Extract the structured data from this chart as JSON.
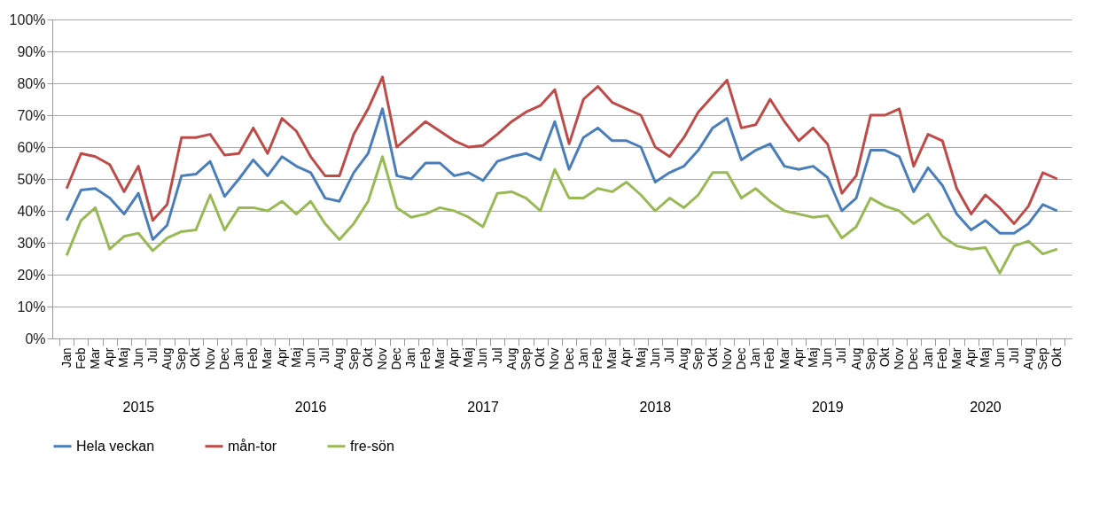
{
  "chart_data": {
    "type": "line",
    "categories": [
      "Jan",
      "Feb",
      "Mar",
      "Apr",
      "Maj",
      "Jun",
      "Jul",
      "Aug",
      "Sep",
      "Okt",
      "Nov",
      "Dec",
      "Jan",
      "Feb",
      "Mar",
      "Apr",
      "Maj",
      "Jun",
      "Jul",
      "Aug",
      "Sep",
      "Okt",
      "Nov",
      "Dec",
      "Jan",
      "Feb",
      "Mar",
      "Apr",
      "Maj",
      "Jun",
      "Jul",
      "Aug",
      "Sep",
      "Okt",
      "Nov",
      "Dec",
      "Jan",
      "Feb",
      "Mar",
      "Apr",
      "Maj",
      "Jun",
      "Jul",
      "Aug",
      "Sep",
      "Okt",
      "Nov",
      "Dec",
      "Jan",
      "Feb",
      "Mar",
      "Apr",
      "Maj",
      "Jun",
      "Jul",
      "Aug",
      "Sep",
      "Okt",
      "Nov",
      "Dec",
      "Jan",
      "Feb",
      "Mar",
      "Apr",
      "Maj",
      "Jun",
      "Jul",
      "Aug",
      "Sep",
      "Okt"
    ],
    "series": [
      {
        "name": "Hela veckan",
        "color": "#4a7ebb",
        "values": [
          37,
          46.5,
          47,
          44,
          39,
          45.5,
          31,
          35.5,
          51,
          51.5,
          55.5,
          44.5,
          50,
          56,
          51,
          57,
          54,
          52,
          44,
          43,
          52,
          58,
          72,
          51,
          50,
          55,
          55,
          51,
          52,
          49.5,
          55.5,
          57,
          58,
          56,
          68,
          53,
          63,
          66,
          62,
          62,
          60,
          49,
          52,
          54,
          59,
          66,
          69,
          56,
          59,
          61,
          54,
          53,
          54,
          50.5,
          40,
          44,
          59,
          59,
          57,
          46,
          53.5,
          48,
          39,
          34,
          37,
          33,
          33,
          36,
          42,
          40
        ]
      },
      {
        "name": "mån-tor",
        "color": "#be4b48",
        "values": [
          47,
          58,
          57,
          54.5,
          46,
          54,
          37,
          42,
          63,
          63,
          64,
          57.5,
          58,
          66,
          58,
          69,
          65,
          57,
          51,
          51,
          64,
          72,
          82,
          60,
          64,
          68,
          65,
          62,
          60,
          60.5,
          64,
          68,
          71,
          73,
          78,
          61,
          75,
          79,
          74,
          72,
          70,
          60,
          57,
          63,
          71,
          76,
          81,
          66,
          67,
          75,
          68,
          62,
          66,
          61,
          45.5,
          51,
          70,
          70,
          72,
          54,
          64,
          62,
          47,
          39,
          45,
          41,
          36,
          41.5,
          52,
          50
        ]
      },
      {
        "name": "fre-sön",
        "color": "#98b954",
        "values": [
          26,
          37,
          41,
          28,
          32,
          33,
          27.5,
          31.5,
          33.5,
          34,
          45,
          34,
          41,
          41,
          40,
          43,
          39,
          43,
          36,
          31,
          36,
          43,
          57,
          41,
          38,
          39,
          41,
          40,
          38,
          35,
          45.5,
          46,
          44,
          40,
          53,
          44,
          44,
          47,
          46,
          49,
          45,
          40,
          44,
          41,
          45,
          52,
          52,
          44,
          47,
          43,
          40,
          39,
          38,
          38.5,
          31.5,
          35,
          44,
          41.5,
          40,
          36,
          39,
          32,
          29,
          28,
          28.5,
          20.5,
          29,
          30.5,
          26.5,
          28
        ]
      }
    ],
    "ylim": [
      0,
      100
    ],
    "yticks": [
      {
        "value": 0,
        "label": "0%"
      },
      {
        "value": 10,
        "label": "10%"
      },
      {
        "value": 20,
        "label": "20%"
      },
      {
        "value": 30,
        "label": "30%"
      },
      {
        "value": 40,
        "label": "40%"
      },
      {
        "value": 50,
        "label": "50%"
      },
      {
        "value": 60,
        "label": "60%"
      },
      {
        "value": 70,
        "label": "70%"
      },
      {
        "value": 80,
        "label": "80%"
      },
      {
        "value": 90,
        "label": "90%"
      },
      {
        "value": 100,
        "label": "100%"
      }
    ],
    "grid": "y",
    "legend": "bottom",
    "marker": "none",
    "line_style": "solid",
    "annotations": [
      "2015",
      "2016",
      "2017",
      "2018",
      "2019",
      "2020"
    ]
  }
}
